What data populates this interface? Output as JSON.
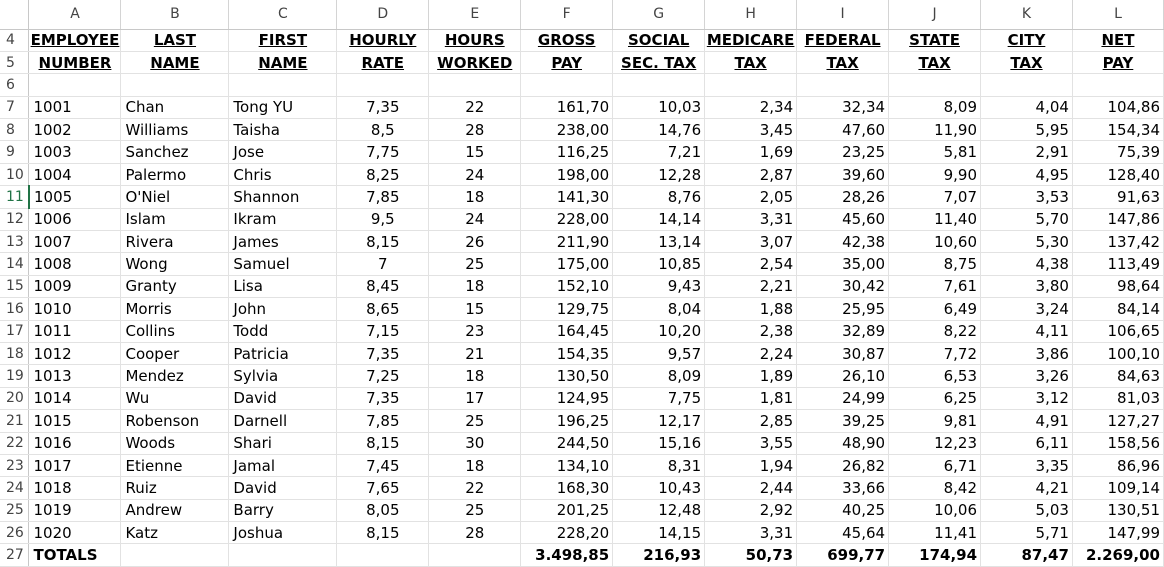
{
  "columns": [
    "A",
    "B",
    "C",
    "D",
    "E",
    "F",
    "G",
    "H",
    "I",
    "J",
    "K",
    "L"
  ],
  "header_rows": [
    {
      "row": "4",
      "cells": [
        "EMPLOYEE",
        "LAST",
        "FIRST",
        "HOURLY",
        "HOURS",
        "GROSS",
        "SOCIAL",
        "MEDICARE",
        "FEDERAL",
        "STATE",
        "CITY",
        "NET"
      ]
    },
    {
      "row": "5",
      "cells": [
        "NUMBER",
        "NAME",
        "NAME",
        "RATE",
        "WORKED",
        "PAY",
        "SEC. TAX",
        "TAX",
        "TAX",
        "TAX",
        "TAX",
        "PAY"
      ]
    }
  ],
  "blank_row": "6",
  "rows": [
    {
      "row": "7",
      "cells": [
        "1001",
        "Chan",
        "Tong YU",
        "7,35",
        "22",
        "161,70",
        "10,03",
        "2,34",
        "32,34",
        "8,09",
        "4,04",
        "104,86"
      ]
    },
    {
      "row": "8",
      "cells": [
        "1002",
        "Williams",
        "Taisha",
        "8,5",
        "28",
        "238,00",
        "14,76",
        "3,45",
        "47,60",
        "11,90",
        "5,95",
        "154,34"
      ]
    },
    {
      "row": "9",
      "cells": [
        "1003",
        "Sanchez",
        "Jose",
        "7,75",
        "15",
        "116,25",
        "7,21",
        "1,69",
        "23,25",
        "5,81",
        "2,91",
        "75,39"
      ]
    },
    {
      "row": "10",
      "cells": [
        "1004",
        "Palermo",
        "Chris",
        "8,25",
        "24",
        "198,00",
        "12,28",
        "2,87",
        "39,60",
        "9,90",
        "4,95",
        "128,40"
      ]
    },
    {
      "row": "11",
      "cells": [
        "1005",
        "O'Niel",
        "Shannon",
        "7,85",
        "18",
        "141,30",
        "8,76",
        "2,05",
        "28,26",
        "7,07",
        "3,53",
        "91,63"
      ]
    },
    {
      "row": "12",
      "cells": [
        "1006",
        "Islam",
        "Ikram",
        "9,5",
        "24",
        "228,00",
        "14,14",
        "3,31",
        "45,60",
        "11,40",
        "5,70",
        "147,86"
      ]
    },
    {
      "row": "13",
      "cells": [
        "1007",
        "Rivera",
        "James",
        "8,15",
        "26",
        "211,90",
        "13,14",
        "3,07",
        "42,38",
        "10,60",
        "5,30",
        "137,42"
      ]
    },
    {
      "row": "14",
      "cells": [
        "1008",
        "Wong",
        "Samuel",
        "7",
        "25",
        "175,00",
        "10,85",
        "2,54",
        "35,00",
        "8,75",
        "4,38",
        "113,49"
      ]
    },
    {
      "row": "15",
      "cells": [
        "1009",
        "Granty",
        "Lisa",
        "8,45",
        "18",
        "152,10",
        "9,43",
        "2,21",
        "30,42",
        "7,61",
        "3,80",
        "98,64"
      ]
    },
    {
      "row": "16",
      "cells": [
        "1010",
        "Morris",
        "John",
        "8,65",
        "15",
        "129,75",
        "8,04",
        "1,88",
        "25,95",
        "6,49",
        "3,24",
        "84,14"
      ]
    },
    {
      "row": "17",
      "cells": [
        "1011",
        "Collins",
        "Todd",
        "7,15",
        "23",
        "164,45",
        "10,20",
        "2,38",
        "32,89",
        "8,22",
        "4,11",
        "106,65"
      ]
    },
    {
      "row": "18",
      "cells": [
        "1012",
        "Cooper",
        "Patricia",
        "7,35",
        "21",
        "154,35",
        "9,57",
        "2,24",
        "30,87",
        "7,72",
        "3,86",
        "100,10"
      ]
    },
    {
      "row": "19",
      "cells": [
        "1013",
        "Mendez",
        "Sylvia",
        "7,25",
        "18",
        "130,50",
        "8,09",
        "1,89",
        "26,10",
        "6,53",
        "3,26",
        "84,63"
      ]
    },
    {
      "row": "20",
      "cells": [
        "1014",
        "Wu",
        "David",
        "7,35",
        "17",
        "124,95",
        "7,75",
        "1,81",
        "24,99",
        "6,25",
        "3,12",
        "81,03"
      ]
    },
    {
      "row": "21",
      "cells": [
        "1015",
        "Robenson",
        "Darnell",
        "7,85",
        "25",
        "196,25",
        "12,17",
        "2,85",
        "39,25",
        "9,81",
        "4,91",
        "127,27"
      ]
    },
    {
      "row": "22",
      "cells": [
        "1016",
        "Woods",
        "Shari",
        "8,15",
        "30",
        "244,50",
        "15,16",
        "3,55",
        "48,90",
        "12,23",
        "6,11",
        "158,56"
      ]
    },
    {
      "row": "23",
      "cells": [
        "1017",
        "Etienne",
        "Jamal",
        "7,45",
        "18",
        "134,10",
        "8,31",
        "1,94",
        "26,82",
        "6,71",
        "3,35",
        "86,96"
      ]
    },
    {
      "row": "24",
      "cells": [
        "1018",
        "Ruiz",
        "David",
        "7,65",
        "22",
        "168,30",
        "10,43",
        "2,44",
        "33,66",
        "8,42",
        "4,21",
        "109,14"
      ]
    },
    {
      "row": "25",
      "cells": [
        "1019",
        "Andrew",
        "Barry",
        "8,05",
        "25",
        "201,25",
        "12,48",
        "2,92",
        "40,25",
        "10,06",
        "5,03",
        "130,51"
      ]
    },
    {
      "row": "26",
      "cells": [
        "1020",
        "Katz",
        "Joshua",
        "8,15",
        "28",
        "228,20",
        "14,15",
        "3,31",
        "45,64",
        "11,41",
        "5,71",
        "147,99"
      ]
    }
  ],
  "totals": {
    "row": "27",
    "cells": [
      "TOTALS",
      "",
      "",
      "",
      "",
      "3.498,85",
      "216,93",
      "50,73",
      "699,77",
      "174,94",
      "87,47",
      "2.269,00"
    ]
  },
  "selected_row": "11",
  "colors": {
    "selected_row_accent": "#217346",
    "gridline": "#e2e2e2"
  }
}
